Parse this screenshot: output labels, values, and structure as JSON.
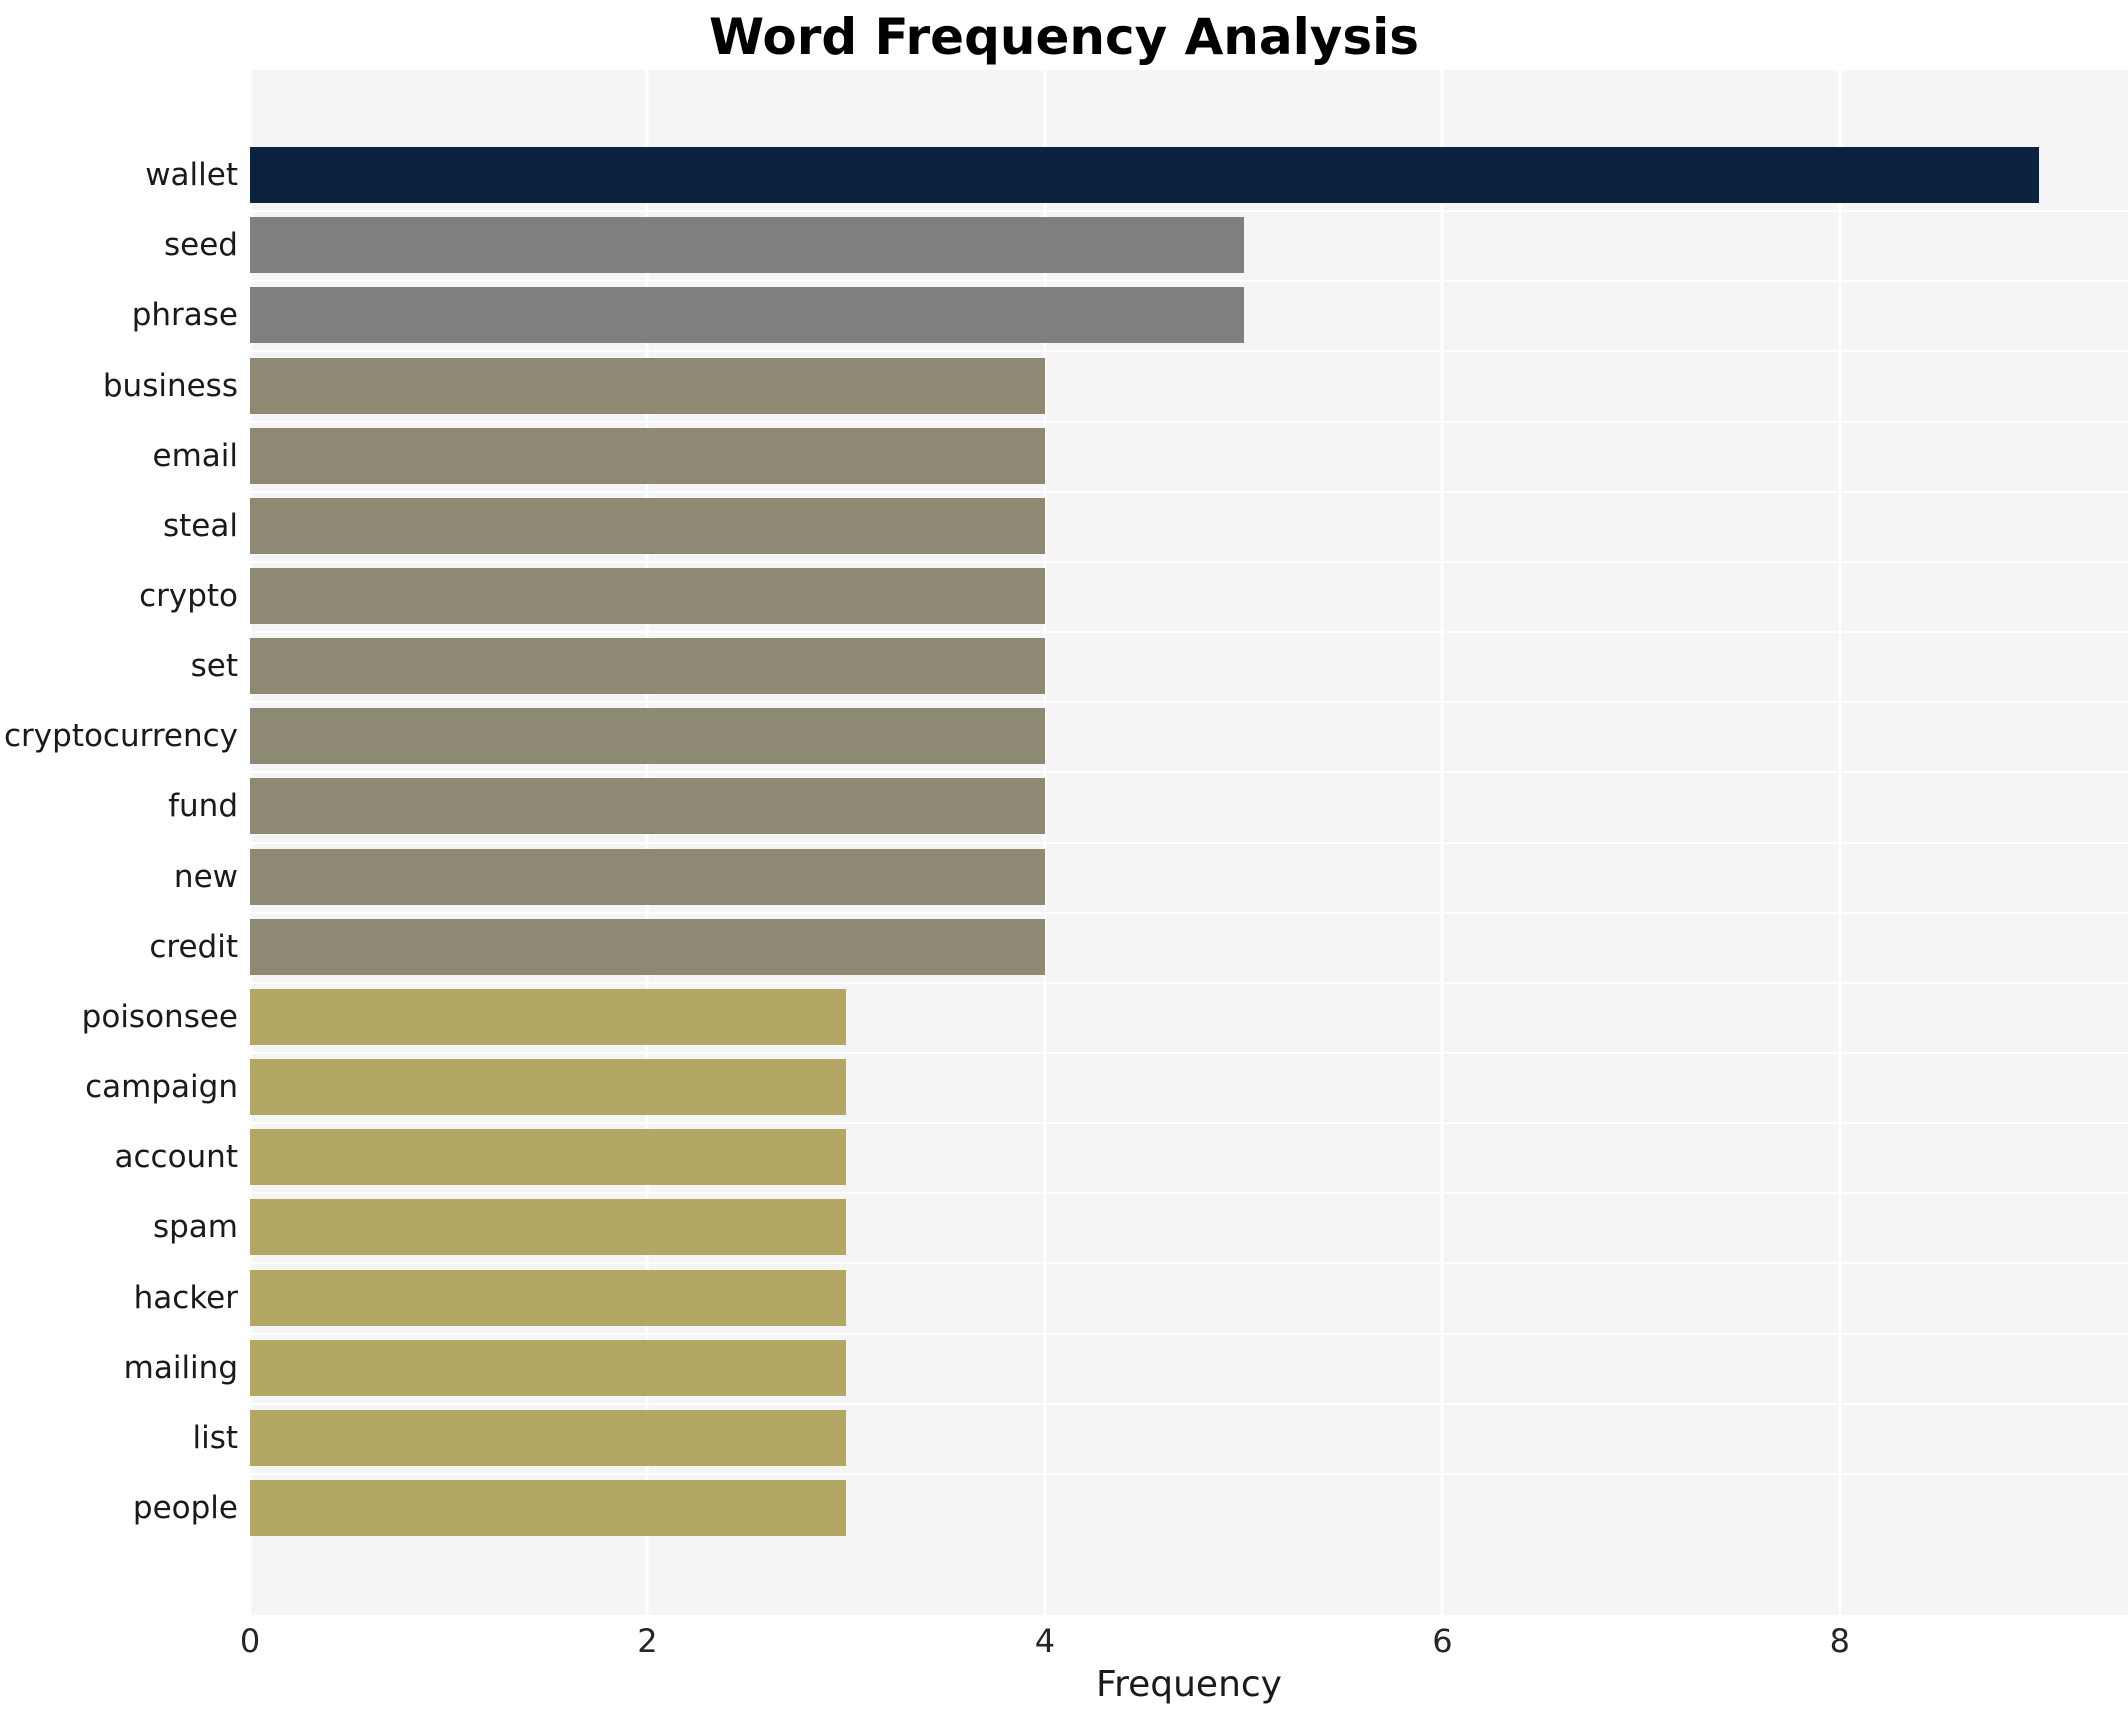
{
  "chart_data": {
    "type": "bar",
    "orientation": "horizontal",
    "title": "Word Frequency Analysis",
    "xlabel": "Frequency",
    "ylabel": "",
    "categories": [
      "wallet",
      "seed",
      "phrase",
      "business",
      "email",
      "steal",
      "crypto",
      "set",
      "cryptocurrency",
      "fund",
      "new",
      "credit",
      "poisonsee",
      "campaign",
      "account",
      "spam",
      "hacker",
      "mailing",
      "list",
      "people"
    ],
    "values": [
      9,
      5,
      5,
      4,
      4,
      4,
      4,
      4,
      4,
      4,
      4,
      4,
      3,
      3,
      3,
      3,
      3,
      3,
      3,
      3
    ],
    "bar_colors": [
      "#0c2340",
      "#7f7f7f",
      "#7f7f7f",
      "#8d8973",
      "#8d8973",
      "#8d8973",
      "#8d8973",
      "#8d8973",
      "#8d8973",
      "#8d8973",
      "#8d8973",
      "#8d8973",
      "#b2a765",
      "#b2a765",
      "#b2a765",
      "#b2a765",
      "#b2a765",
      "#b2a765",
      "#b2a765",
      "#b2a765"
    ],
    "xlim": [
      0,
      9.45
    ],
    "xticks": [
      0,
      2,
      4,
      6,
      8
    ],
    "grid": true,
    "plot_background": "#f5f5f5",
    "gridline_color": "#ffffff",
    "legend": "none"
  }
}
